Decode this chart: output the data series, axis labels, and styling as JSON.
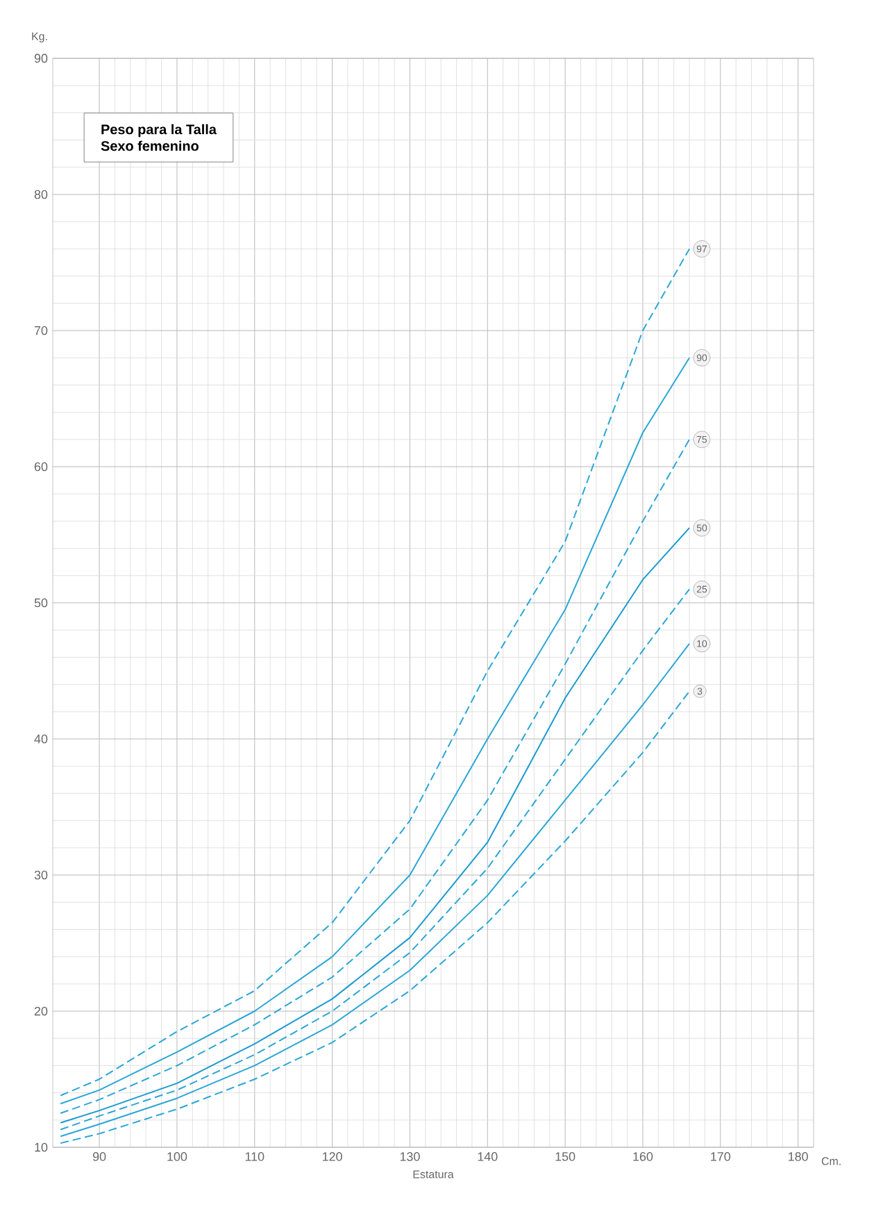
{
  "chart_data": {
    "type": "line",
    "title": "Peso para la Talla",
    "subtitle": "Sexo femenino",
    "xlabel": "Estatura",
    "ylabel": "Kg.",
    "annotations": [
      "Cm."
    ],
    "x": [
      85,
      90,
      100,
      110,
      120,
      130,
      140,
      150,
      160,
      166
    ],
    "series": [
      {
        "name": "3",
        "color": "#2aa6d6",
        "line_style": "dashed",
        "values": [
          10.3,
          11,
          12.8,
          15,
          17.7,
          21.5,
          26.5,
          32.5,
          39,
          43.5
        ]
      },
      {
        "name": "10",
        "color": "#2aa6d6",
        "line_style": "solid",
        "values": [
          10.8,
          11.7,
          13.6,
          16,
          19,
          23,
          28.5,
          35.5,
          42.5,
          47
        ]
      },
      {
        "name": "25",
        "color": "#2aa6d6",
        "line_style": "dashed",
        "values": [
          11.3,
          12.3,
          14.2,
          16.8,
          20,
          24.3,
          30.5,
          38.5,
          46.5,
          51
        ]
      },
      {
        "name": "50",
        "color": "#1a9ad0",
        "line_style": "solid",
        "values": [
          11.8,
          12.7,
          14.7,
          17.6,
          20.9,
          25.4,
          32.4,
          43,
          51.7,
          55.5
        ]
      },
      {
        "name": "75",
        "color": "#2aa6d6",
        "line_style": "dashed",
        "values": [
          12.5,
          13.5,
          16,
          19,
          22.5,
          27.5,
          35.5,
          45.5,
          56,
          62
        ]
      },
      {
        "name": "90",
        "color": "#2aa6d6",
        "line_style": "solid",
        "values": [
          13.2,
          14.2,
          17,
          20,
          24,
          30,
          40,
          49.5,
          62.5,
          68
        ]
      },
      {
        "name": "97",
        "color": "#2aa6d6",
        "line_style": "dashed",
        "values": [
          13.8,
          15,
          18.5,
          21.5,
          26.5,
          34,
          45,
          54.5,
          70,
          76
        ]
      }
    ],
    "xlim": [
      84,
      182
    ],
    "ylim": [
      10,
      90
    ],
    "xticks": [
      90,
      100,
      110,
      120,
      130,
      140,
      150,
      160,
      170,
      180
    ],
    "yticks": [
      10,
      20,
      30,
      40,
      50,
      60,
      70,
      80,
      90
    ],
    "grid": true,
    "marker": "none"
  }
}
